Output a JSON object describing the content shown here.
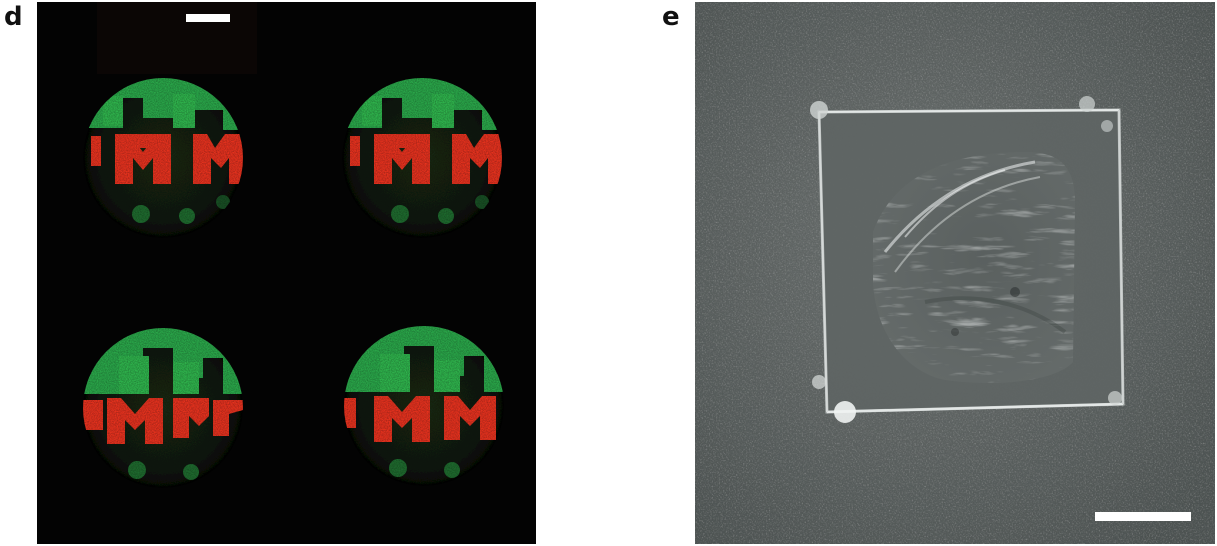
{
  "figure": {
    "panels": [
      {
        "label": "d",
        "kind": "fluorescence-micrograph",
        "description_colors": {
          "background": "#030303",
          "green_channel": "#29b34a",
          "red_channel": "#e8321e"
        },
        "dot_count": 4,
        "scale_bar_color": "#ffffff"
      },
      {
        "label": "e",
        "kind": "grayscale-micrograph",
        "description_colors": {
          "background": "#5d6262",
          "highlight": "#d8dcdc"
        },
        "scale_bar_color": "#ffffff"
      }
    ]
  }
}
